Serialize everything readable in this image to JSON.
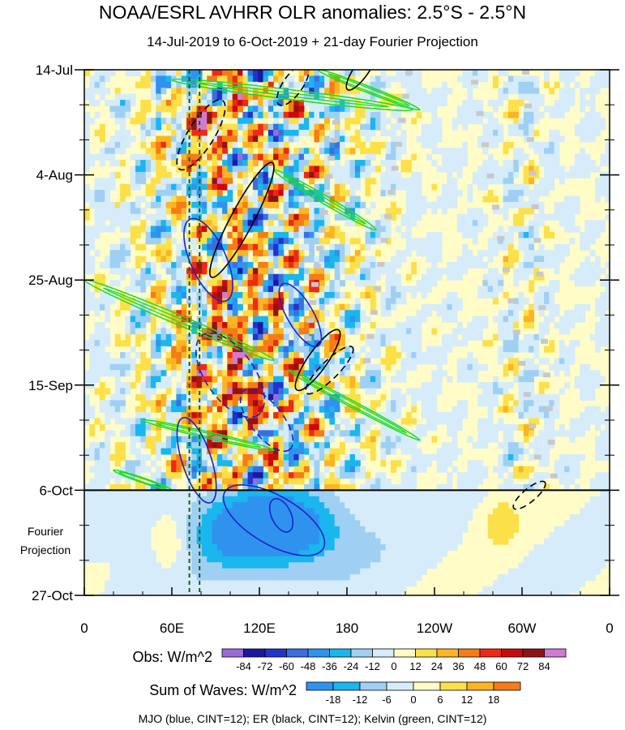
{
  "header": {
    "title": "NOAA/ESRL AVHRR OLR anomalies: 2.5°S - 2.5°N",
    "subtitle": "14-Jul-2019 to 6-Oct-2019 + 21-day Fourier Projection"
  },
  "chart_data": {
    "type": "heatmap",
    "title": "NOAA/ESRL AVHRR OLR anomalies: 2.5°S - 2.5°N",
    "subtitle": "14-Jul-2019 to 6-Oct-2019 + 21-day Fourier Projection",
    "x_axis": {
      "ticks": [
        "0",
        "60E",
        "120E",
        "180",
        "120W",
        "60W",
        "0"
      ],
      "tick_lon": [
        0,
        60,
        120,
        180,
        240,
        300,
        360
      ],
      "range_lon": [
        0,
        360
      ]
    },
    "y_axis": {
      "ticks": [
        "14-Jul",
        "4-Aug",
        "25-Aug",
        "15-Sep",
        "6-Oct",
        "27-Oct"
      ],
      "tick_day": [
        0,
        21,
        42,
        63,
        84,
        105
      ],
      "range_day": [
        0,
        105
      ],
      "orientation": "time increasing downward"
    },
    "projection_label": [
      "Fourier",
      "Projection"
    ],
    "observation_end_line": "6-Oct",
    "mjo_phase_lines_lon": [
      72,
      79
    ],
    "obs_colorbar": {
      "label": "Obs: W/m^2",
      "levels": [
        -84,
        -72,
        -60,
        -48,
        -36,
        -24,
        -12,
        0,
        12,
        24,
        36,
        48,
        60,
        72,
        84
      ],
      "colors": [
        "#9b6ad8",
        "#1a1aa0",
        "#2233cc",
        "#3a6fe0",
        "#2f93ee",
        "#1ab6ee",
        "#9fd0f4",
        "#d6ecfa",
        "#fffcc8",
        "#fce04a",
        "#fcb422",
        "#f57c16",
        "#ee2a16",
        "#c80a0a",
        "#8e1414",
        "#d27ad2"
      ]
    },
    "waves_colorbar": {
      "label": "Sum of Waves: W/m^2",
      "levels": [
        -18,
        -12,
        -6,
        0,
        6,
        12,
        18
      ],
      "colors": [
        "#2f93ee",
        "#1ab6ee",
        "#9fd0f4",
        "#d6ecfa",
        "#fffcc8",
        "#fce04a",
        "#fcb422",
        "#f57c16"
      ]
    },
    "contours": [
      {
        "name": "MJO",
        "color": "#2020cc",
        "cint": 12
      },
      {
        "name": "ER",
        "color": "#000000",
        "cint": 12
      },
      {
        "name": "Kelvin",
        "color": "#22dd22",
        "cint": 12
      }
    ],
    "legend_text": "MJO (blue, CINT=12); ER (black, CINT=12); Kelvin (green, CINT=12)"
  },
  "footer": {
    "legend_text": "MJO (blue, CINT=12); ER (black, CINT=12); Kelvin (green, CINT=12)"
  }
}
